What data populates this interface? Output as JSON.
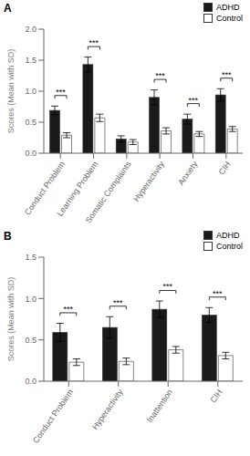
{
  "chart_data": [
    {
      "type": "bar",
      "title": "A",
      "ylabel": "Scores (Mean with SD)",
      "categories": [
        "Conduct Problem",
        "Learning Problem",
        "Somatic Complaints",
        "Hyperactivity",
        "Anxiety",
        "CIH"
      ],
      "series": [
        {
          "name": "ADHD",
          "color": "#1a1a1a",
          "values": [
            0.69,
            1.43,
            0.23,
            0.9,
            0.55,
            0.94
          ],
          "errors": [
            0.07,
            0.12,
            0.05,
            0.12,
            0.08,
            0.1
          ]
        },
        {
          "name": "Control",
          "color": "#ffffff",
          "values": [
            0.29,
            0.57,
            0.18,
            0.36,
            0.31,
            0.39
          ],
          "errors": [
            0.04,
            0.06,
            0.04,
            0.05,
            0.04,
            0.04
          ]
        }
      ],
      "annotations": [
        {
          "category": "Conduct Problem",
          "text": "***"
        },
        {
          "category": "Learning Problem",
          "text": "***"
        },
        {
          "category": "Hyperactivity",
          "text": "***"
        },
        {
          "category": "Anxiety",
          "text": "***"
        },
        {
          "category": "CIH",
          "text": "***"
        }
      ],
      "ylim": [
        0,
        2.0
      ],
      "yticks": [
        {
          "value": 0,
          "label": "0.0"
        },
        0.5,
        {
          "value": 1,
          "label": "1.0"
        },
        1.5,
        {
          "value": 2,
          "label": "2.0"
        }
      ],
      "legend": "upper right",
      "grid": false
    },
    {
      "type": "bar",
      "title": "B",
      "ylabel": "Scores (Mean with SD)",
      "categories": [
        "Conduct Problem",
        "Hyperactivity",
        "Inattention",
        "CIH"
      ],
      "series": [
        {
          "name": "ADHD",
          "color": "#1a1a1a",
          "values": [
            0.59,
            0.65,
            0.87,
            0.8
          ],
          "errors": [
            0.11,
            0.13,
            0.1,
            0.09
          ]
        },
        {
          "name": "Control",
          "color": "#ffffff",
          "values": [
            0.23,
            0.24,
            0.38,
            0.31
          ],
          "errors": [
            0.04,
            0.04,
            0.04,
            0.04
          ]
        }
      ],
      "annotations": [
        {
          "category": "Conduct Problem",
          "text": "***"
        },
        {
          "category": "Hyperactivity",
          "text": "***"
        },
        {
          "category": "Inattention",
          "text": "***"
        },
        {
          "category": "CIH",
          "text": "***"
        }
      ],
      "ylim": [
        0,
        1.5
      ],
      "yticks": [
        {
          "value": 0,
          "label": "0.0"
        },
        0.5,
        {
          "value": 1,
          "label": "1.0"
        },
        1.5
      ],
      "legend": "upper right",
      "grid": false
    }
  ]
}
